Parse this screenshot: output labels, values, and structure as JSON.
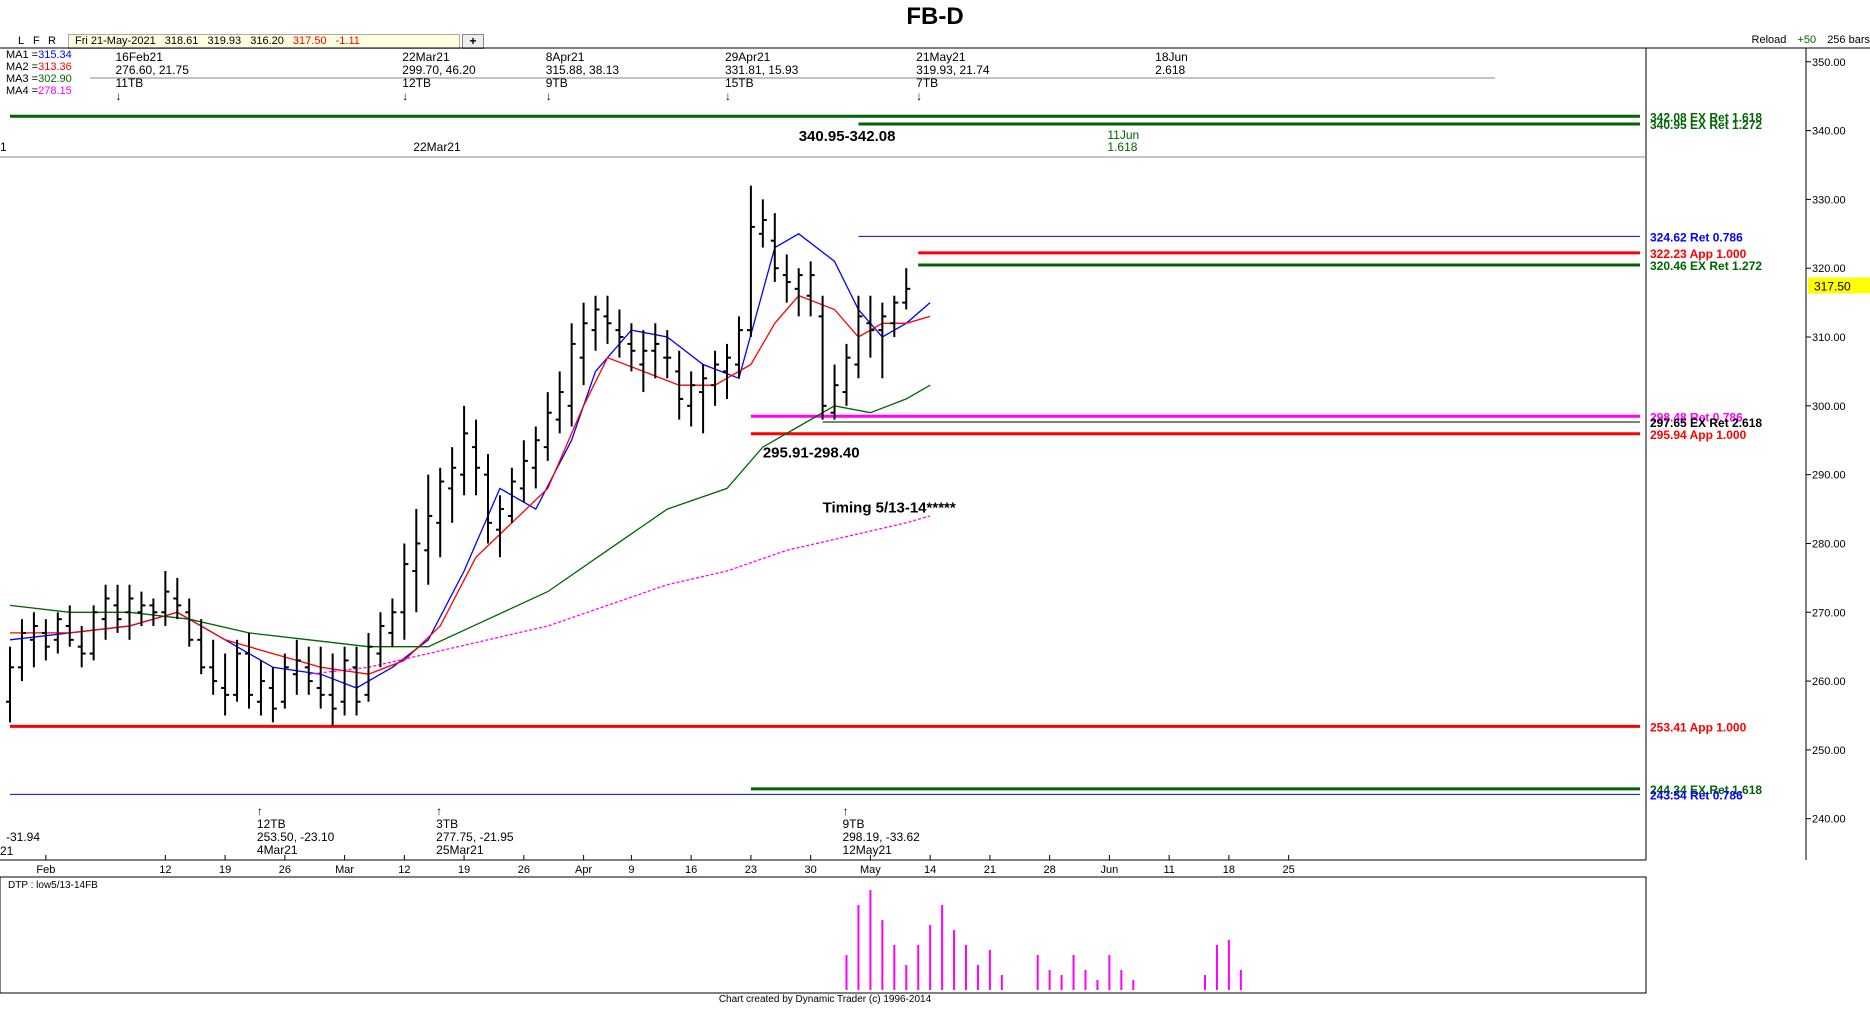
{
  "title": "FB-D",
  "toolbar": {
    "buttons": [
      "L",
      "F",
      "R"
    ],
    "date": "Fri 21-May-2021",
    "open": "318.61",
    "high": "319.93",
    "low": "316.20",
    "close": "317.50",
    "change": "-1.11",
    "add": "+",
    "reload": "Reload",
    "step": "+50",
    "bars": "256 bars"
  },
  "ma_legend": [
    {
      "label": "MA1 =",
      "value": "315.34",
      "color": "#0000ff"
    },
    {
      "label": "MA2 =",
      "value": "313.36",
      "color": "#ff0000"
    },
    {
      "label": "MA3 =",
      "value": "302.90",
      "color": "#006400"
    },
    {
      "label": "MA4 =",
      "value": "278.15",
      "color": "#ff00ff"
    }
  ],
  "colors": {
    "ma1": "#0000ff",
    "ma2": "#ff0000",
    "ma3": "#006400",
    "ma4": "#ff00ff",
    "price_label_bg": "#ffff00",
    "dtp": "#ff00ff",
    "green": "#006400",
    "red": "#ff0000",
    "blue": "#0000ff"
  },
  "chart_data": {
    "type": "bar",
    "title": "FB-D",
    "ylim": [
      234,
      352
    ],
    "y_ticks": [
      "350.00",
      "340.00",
      "330.00",
      "320.00",
      "310.00",
      "300.00",
      "290.00",
      "280.00",
      "270.00",
      "260.00",
      "250.00",
      "240.00"
    ],
    "y_tick_values": [
      350,
      340,
      330,
      320,
      310,
      300,
      290,
      280,
      270,
      260,
      250,
      240
    ],
    "last_price": "317.50",
    "last_price_value": 317.5,
    "x_tick_labels": [
      "Feb",
      "12",
      "19",
      "26",
      "Mar",
      "12",
      "19",
      "26",
      "Apr",
      "9",
      "16",
      "23",
      "30",
      "May",
      "14",
      "21",
      "28",
      "Jun",
      "11",
      "18",
      "25"
    ],
    "x_tick_index": [
      3,
      13,
      18,
      23,
      28,
      33,
      38,
      43,
      48,
      52,
      57,
      62,
      67,
      72,
      77,
      82,
      87,
      92,
      97,
      102,
      107
    ],
    "ohlc_bars": [
      [
        257,
        265,
        254,
        262
      ],
      [
        262,
        269,
        260,
        267
      ],
      [
        266,
        270,
        262,
        268
      ],
      [
        267,
        269,
        263,
        265
      ],
      [
        266,
        270,
        264,
        269
      ],
      [
        268,
        271,
        265,
        266
      ],
      [
        265,
        268,
        262,
        264
      ],
      [
        264,
        271,
        263,
        270
      ],
      [
        269,
        274,
        266,
        272
      ],
      [
        271,
        274,
        267,
        269
      ],
      [
        270,
        274,
        266,
        272
      ],
      [
        270,
        273,
        268,
        271
      ],
      [
        271,
        272,
        268,
        270
      ],
      [
        270,
        276,
        268,
        273
      ],
      [
        272,
        275,
        269,
        271
      ],
      [
        270,
        272,
        265,
        266
      ],
      [
        266,
        269,
        261,
        262
      ],
      [
        262,
        266,
        258,
        260
      ],
      [
        259,
        264,
        255,
        258
      ],
      [
        258,
        266,
        257,
        264
      ],
      [
        264,
        267,
        256,
        258
      ],
      [
        257,
        263,
        255,
        260
      ],
      [
        259,
        262,
        254,
        256
      ],
      [
        257,
        264,
        256,
        262
      ],
      [
        261,
        266,
        258,
        263
      ],
      [
        262,
        265,
        258,
        260
      ],
      [
        259,
        265,
        256,
        258
      ],
      [
        258,
        264,
        253.5,
        256
      ],
      [
        257,
        265,
        255,
        263
      ],
      [
        262,
        265,
        255,
        257
      ],
      [
        258,
        267,
        257,
        265
      ],
      [
        264,
        270,
        262,
        268
      ],
      [
        267,
        272,
        265,
        270
      ],
      [
        270,
        280,
        266,
        277
      ],
      [
        276,
        285,
        270,
        280
      ],
      [
        279,
        290,
        274,
        284
      ],
      [
        283,
        291,
        278,
        289
      ],
      [
        288,
        294,
        283,
        291
      ],
      [
        290,
        300,
        287,
        296
      ],
      [
        294,
        298,
        287,
        291
      ],
      [
        290,
        293,
        280,
        283
      ],
      [
        282,
        287,
        278,
        285
      ],
      [
        284,
        291,
        283,
        289
      ],
      [
        288,
        295,
        286,
        292
      ],
      [
        291,
        297,
        288,
        295
      ],
      [
        294,
        302,
        292,
        299
      ],
      [
        298,
        305,
        296,
        302
      ],
      [
        300,
        312,
        297,
        309
      ],
      [
        307,
        315,
        303,
        312
      ],
      [
        311,
        316,
        308,
        314
      ],
      [
        313,
        316,
        309,
        312
      ],
      [
        311,
        314,
        307,
        310
      ],
      [
        309,
        312,
        305,
        308
      ],
      [
        306,
        311,
        302,
        308
      ],
      [
        308,
        312,
        304,
        309
      ],
      [
        307,
        311,
        304,
        307
      ],
      [
        305,
        308,
        298,
        301
      ],
      [
        300,
        305,
        297,
        303
      ],
      [
        302,
        306,
        296,
        304
      ],
      [
        303,
        308,
        300,
        306
      ],
      [
        305,
        309,
        301,
        307
      ],
      [
        306,
        313,
        304,
        311
      ],
      [
        311,
        332,
        310,
        326
      ],
      [
        325,
        330,
        323,
        327
      ],
      [
        324,
        328,
        318,
        320
      ],
      [
        319,
        322,
        315,
        318
      ],
      [
        317,
        320,
        313,
        319
      ],
      [
        316,
        321,
        313,
        319
      ],
      [
        313,
        316,
        298,
        300
      ],
      [
        299,
        306,
        298,
        303
      ],
      [
        302,
        309,
        300,
        307
      ],
      [
        306,
        316,
        304,
        313
      ],
      [
        312,
        316,
        307,
        311
      ],
      [
        311,
        315,
        304,
        313
      ],
      [
        312,
        316,
        310,
        315
      ],
      [
        315,
        320,
        314,
        317
      ]
    ],
    "ma_series": [
      {
        "name": "MA1",
        "color": "#0000ff",
        "style": "solid",
        "points": [
          [
            0,
            266
          ],
          [
            5,
            267
          ],
          [
            10,
            268
          ],
          [
            14,
            270
          ],
          [
            18,
            266
          ],
          [
            22,
            262
          ],
          [
            26,
            261
          ],
          [
            29,
            259
          ],
          [
            32,
            262
          ],
          [
            35,
            266
          ],
          [
            38,
            276
          ],
          [
            41,
            288
          ],
          [
            44,
            285
          ],
          [
            47,
            295
          ],
          [
            49,
            305
          ],
          [
            52,
            311
          ],
          [
            55,
            310
          ],
          [
            58,
            306
          ],
          [
            61,
            304
          ],
          [
            64,
            323
          ],
          [
            66,
            325
          ],
          [
            69,
            321
          ],
          [
            71,
            314
          ],
          [
            73,
            310
          ],
          [
            75,
            312
          ],
          [
            77,
            315
          ]
        ]
      },
      {
        "name": "MA2",
        "color": "#ff0000",
        "style": "solid",
        "points": [
          [
            0,
            267
          ],
          [
            5,
            267
          ],
          [
            10,
            268
          ],
          [
            14,
            270
          ],
          [
            18,
            266
          ],
          [
            22,
            264
          ],
          [
            26,
            262
          ],
          [
            30,
            261
          ],
          [
            33,
            263
          ],
          [
            36,
            268
          ],
          [
            39,
            278
          ],
          [
            42,
            283
          ],
          [
            45,
            288
          ],
          [
            48,
            300
          ],
          [
            50,
            307
          ],
          [
            53,
            305
          ],
          [
            56,
            303
          ],
          [
            59,
            303
          ],
          [
            62,
            306
          ],
          [
            64,
            312
          ],
          [
            66,
            316
          ],
          [
            69,
            314
          ],
          [
            71,
            310
          ],
          [
            73,
            312
          ],
          [
            75,
            312
          ],
          [
            77,
            313
          ]
        ]
      },
      {
        "name": "MA3",
        "color": "#006400",
        "style": "solid",
        "points": [
          [
            0,
            271
          ],
          [
            5,
            270
          ],
          [
            10,
            270
          ],
          [
            15,
            269
          ],
          [
            20,
            267
          ],
          [
            25,
            266
          ],
          [
            30,
            265
          ],
          [
            35,
            265
          ],
          [
            40,
            269
          ],
          [
            45,
            273
          ],
          [
            50,
            279
          ],
          [
            55,
            285
          ],
          [
            60,
            288
          ],
          [
            63,
            294
          ],
          [
            66,
            297
          ],
          [
            69,
            300
          ],
          [
            72,
            299
          ],
          [
            75,
            301
          ],
          [
            77,
            303
          ]
        ]
      },
      {
        "name": "MA4",
        "color": "#ff00ff",
        "style": "dotted",
        "points": [
          [
            25,
            261
          ],
          [
            30,
            262
          ],
          [
            35,
            264
          ],
          [
            40,
            266
          ],
          [
            45,
            268
          ],
          [
            50,
            271
          ],
          [
            55,
            274
          ],
          [
            60,
            276
          ],
          [
            65,
            279
          ],
          [
            70,
            281
          ],
          [
            75,
            283
          ],
          [
            77,
            284
          ]
        ]
      }
    ],
    "levels": [
      {
        "label": "342.08 EX Ret 1.618",
        "value": 342.08,
        "color": "#006400",
        "x_from": 0
      },
      {
        "label": "340.95 EX Ret 1.272",
        "value": 340.95,
        "color": "#006400",
        "x_from": 71
      },
      {
        "label": "324.62 Ret 0.786",
        "value": 324.62,
        "color": "#0000ff",
        "x_from": 71
      },
      {
        "label": "322.23 App 1.000",
        "value": 322.23,
        "color": "#ff0000",
        "x_from": 76
      },
      {
        "label": "320.46 EX Ret 1.272",
        "value": 320.46,
        "color": "#006400",
        "x_from": 76
      },
      {
        "label": "298.48 Ret 0.786",
        "value": 298.48,
        "color": "#ff00ff",
        "x_from": 62
      },
      {
        "label": "297.65 EX Ret 2.618",
        "value": 297.65,
        "color": "#000000",
        "x_from": 68
      },
      {
        "label": "295.94 App 1.000",
        "value": 295.94,
        "color": "#ff0000",
        "x_from": 62
      },
      {
        "label": "253.41 App 1.000",
        "value": 253.41,
        "color": "#ff0000",
        "x_from": 0
      },
      {
        "label": "244.34 EX Ret 1.618",
        "value": 244.34,
        "color": "#006400",
        "x_from": 62
      },
      {
        "label": "243.54 Ret 0.786",
        "value": 243.54,
        "color": "#0000ff",
        "x_from": 0
      }
    ],
    "zone_labels": [
      {
        "text": "340.95-342.08",
        "x": 66,
        "y": 338.5
      },
      {
        "text": "295.91-298.40",
        "x": 63,
        "y": 292.5
      },
      {
        "text": "Timing 5/13-14*****",
        "x": 68,
        "y": 284.5
      }
    ],
    "top_annotations": [
      {
        "lines": [
          "16Feb21",
          "276.60, 21.75",
          "11TB",
          "↓"
        ],
        "x": 10
      },
      {
        "lines": [
          "22Mar21",
          "299.70, 46.20",
          "12TB",
          "↓"
        ],
        "x": 34
      },
      {
        "lines": [
          "8Apr21",
          "315.88, 38.13",
          "9TB",
          "↓"
        ],
        "x": 46
      },
      {
        "lines": [
          "29Apr21",
          "331.81, 15.93",
          "15TB",
          "↓"
        ],
        "x": 61
      },
      {
        "lines": [
          "21May21",
          "319.93, 21.74",
          "7TB",
          "↓"
        ],
        "x": 77
      },
      {
        "lines": [
          "18Jun",
          "2.618"
        ],
        "x": 97
      }
    ],
    "bottom_annotations": [
      {
        "lines": [
          "↑",
          "12TB",
          "253.50, -23.10",
          "4Mar21"
        ],
        "x": 22
      },
      {
        "lines": [
          "↑",
          "3TB",
          "277.75, -21.95",
          "25Mar21"
        ],
        "x": 37
      },
      {
        "lines": [
          "↑",
          "9TB",
          "298.19, -33.62",
          "12May21"
        ],
        "x": 71
      }
    ],
    "left_partial_labels": [
      "1",
      "-31.94",
      "21"
    ],
    "mid_label": {
      "text": "22Mar21",
      "x": 34
    },
    "proj_label": {
      "lines": [
        "11Jun",
        "1.618"
      ],
      "x": 92
    },
    "dtp": {
      "label": "DTP : low5/13-14FB",
      "bars": [
        [
          70,
          0.35
        ],
        [
          71,
          0.85
        ],
        [
          72,
          1.0
        ],
        [
          73,
          0.7
        ],
        [
          74,
          0.45
        ],
        [
          75,
          0.25
        ],
        [
          76,
          0.45
        ],
        [
          77,
          0.65
        ],
        [
          78,
          0.85
        ],
        [
          79,
          0.6
        ],
        [
          80,
          0.45
        ],
        [
          81,
          0.25
        ],
        [
          82,
          0.4
        ],
        [
          83,
          0.15
        ],
        [
          86,
          0.35
        ],
        [
          87,
          0.2
        ],
        [
          88,
          0.15
        ],
        [
          89,
          0.35
        ],
        [
          90,
          0.2
        ],
        [
          91,
          0.1
        ],
        [
          92,
          0.35
        ],
        [
          93,
          0.2
        ],
        [
          94,
          0.1
        ],
        [
          100,
          0.15
        ],
        [
          101,
          0.45
        ],
        [
          102,
          0.5
        ],
        [
          103,
          0.2
        ]
      ]
    }
  },
  "footer": "Chart created by Dynamic Trader  (c)  1996-2014"
}
